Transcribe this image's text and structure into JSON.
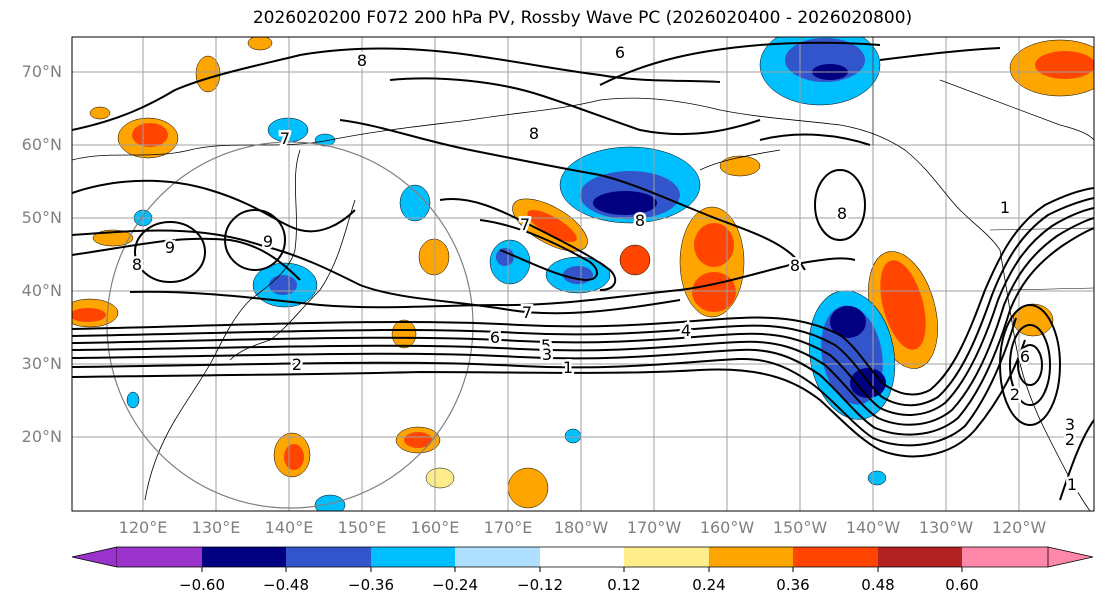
{
  "title": "2026020200 F072 200 hPa PV, Rossby Wave PC (2026020400 - 2026020800)",
  "lat_labels": [
    "70°N",
    "60°N",
    "50°N",
    "40°N",
    "30°N",
    "20°N"
  ],
  "lon_labels": [
    "120°E",
    "130°E",
    "140°E",
    "150°E",
    "160°E",
    "170°E",
    "180°W",
    "170°W",
    "160°W",
    "150°W",
    "140°W",
    "130°W",
    "120°W"
  ],
  "contour_labels": [
    "6",
    "8",
    "8",
    "7",
    "9",
    "9",
    "8",
    "5",
    "7",
    "6",
    "4",
    "5",
    "3",
    "1",
    "2",
    "8",
    "1",
    "6",
    "2",
    "3",
    "2",
    "1",
    "8",
    "7",
    "8"
  ],
  "colorbar": {
    "colors": [
      "#9933cc",
      "#000080",
      "#3355cc",
      "#00bfff",
      "#b0e0ff",
      "#ffffff",
      "#ffec8b",
      "#ffa500",
      "#ff4500",
      "#b22222",
      "#ff88aa"
    ],
    "tick_labels": [
      "−0.60",
      "−0.48",
      "−0.36",
      "−0.24",
      "−0.12",
      "0.12",
      "0.24",
      "0.36",
      "0.48",
      "0.60"
    ]
  }
}
